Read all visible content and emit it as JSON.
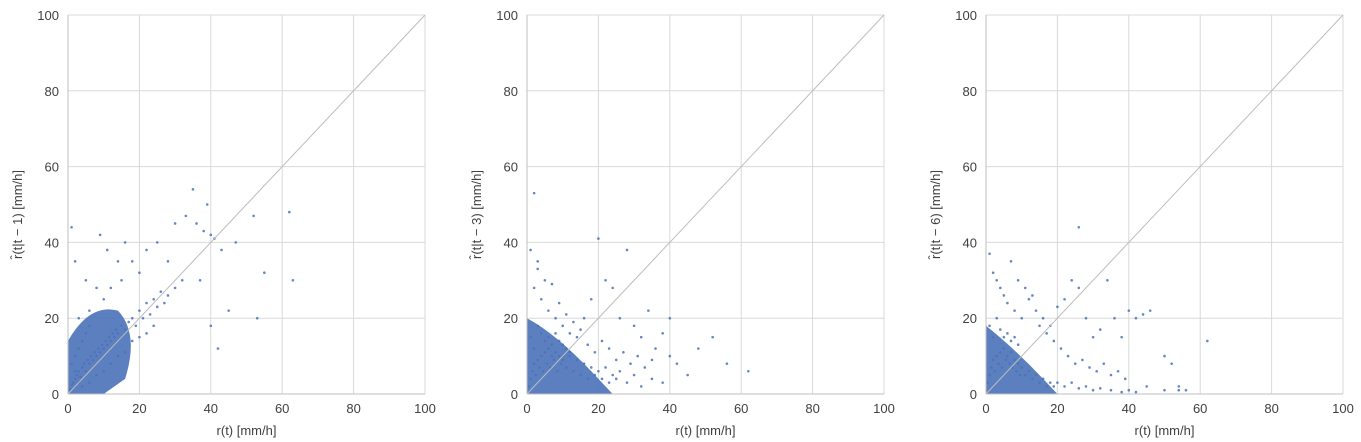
{
  "chart_data": [
    {
      "type": "scatter",
      "xlabel": "r(t) [mm/h]",
      "ylabel": "r̂(t|t − 1) [mm/h]",
      "xlim": [
        0,
        100
      ],
      "ylim": [
        0,
        100
      ],
      "xticks": [
        "0",
        "20",
        "40",
        "60",
        "80",
        "100"
      ],
      "yticks": [
        "0",
        "20",
        "40",
        "60",
        "80",
        "100"
      ],
      "grid": true,
      "reference_line": "y = x",
      "point_color": "#4a72b8",
      "points": [
        [
          0.5,
          1.2
        ],
        [
          1,
          2.5
        ],
        [
          1.5,
          3
        ],
        [
          2,
          4
        ],
        [
          2.5,
          5
        ],
        [
          3,
          6
        ],
        [
          3.5,
          4.5
        ],
        [
          4,
          7
        ],
        [
          4.5,
          8
        ],
        [
          5,
          6
        ],
        [
          5.5,
          9
        ],
        [
          6,
          8
        ],
        [
          6.5,
          10
        ],
        [
          7,
          9
        ],
        [
          7.5,
          11
        ],
        [
          8,
          10
        ],
        [
          8.5,
          12
        ],
        [
          9,
          11
        ],
        [
          9.5,
          13
        ],
        [
          10,
          12
        ],
        [
          10.5,
          14
        ],
        [
          11,
          13
        ],
        [
          11.5,
          15
        ],
        [
          12,
          14
        ],
        [
          12.5,
          16
        ],
        [
          13,
          15
        ],
        [
          13.5,
          17
        ],
        [
          14,
          16
        ],
        [
          15,
          18
        ],
        [
          16,
          17
        ],
        [
          17,
          19
        ],
        [
          18,
          20
        ],
        [
          19,
          18
        ],
        [
          20,
          22
        ],
        [
          21,
          20
        ],
        [
          22,
          24
        ],
        [
          23,
          21
        ],
        [
          24,
          25
        ],
        [
          25,
          23
        ],
        [
          26,
          27
        ],
        [
          27,
          24
        ],
        [
          28,
          26
        ],
        [
          30,
          28
        ],
        [
          32,
          30
        ],
        [
          33,
          47
        ],
        [
          35,
          54
        ],
        [
          36,
          45
        ],
        [
          38,
          43
        ],
        [
          39,
          50
        ],
        [
          40,
          42
        ],
        [
          41,
          41
        ],
        [
          43,
          38
        ],
        [
          47,
          40
        ],
        [
          52,
          47
        ],
        [
          53,
          20
        ],
        [
          55,
          32
        ],
        [
          62,
          48
        ],
        [
          63,
          30
        ],
        [
          1,
          44
        ],
        [
          2,
          35
        ],
        [
          5,
          30
        ],
        [
          8,
          28
        ],
        [
          3,
          20
        ],
        [
          6,
          22
        ],
        [
          10,
          25
        ],
        [
          12,
          28
        ],
        [
          15,
          30
        ],
        [
          18,
          35
        ],
        [
          20,
          32
        ],
        [
          22,
          38
        ],
        [
          25,
          40
        ],
        [
          28,
          35
        ],
        [
          30,
          45
        ],
        [
          37,
          30
        ],
        [
          40,
          18
        ],
        [
          42,
          12
        ],
        [
          45,
          22
        ],
        [
          16,
          40
        ],
        [
          14,
          35
        ],
        [
          9,
          42
        ],
        [
          11,
          38
        ],
        [
          2,
          10
        ],
        [
          3,
          12
        ],
        [
          4,
          14
        ],
        [
          5,
          16
        ],
        [
          6,
          18
        ],
        [
          1,
          8
        ],
        [
          2,
          6
        ],
        [
          3,
          3
        ],
        [
          4,
          2
        ],
        [
          6,
          3
        ],
        [
          8,
          5
        ],
        [
          10,
          6
        ],
        [
          12,
          8
        ],
        [
          14,
          10
        ],
        [
          16,
          11
        ],
        [
          18,
          14
        ],
        [
          20,
          15
        ],
        [
          22,
          16
        ],
        [
          24,
          18
        ]
      ]
    },
    {
      "type": "scatter",
      "xlabel": "r(t) [mm/h]",
      "ylabel": "r̂(t|t − 3) [mm/h]",
      "xlim": [
        0,
        100
      ],
      "ylim": [
        0,
        100
      ],
      "xticks": [
        "0",
        "20",
        "40",
        "60",
        "80",
        "100"
      ],
      "yticks": [
        "0",
        "20",
        "40",
        "60",
        "80",
        "100"
      ],
      "grid": true,
      "reference_line": "y = x",
      "point_color": "#4a72b8",
      "points": [
        [
          0.5,
          2
        ],
        [
          1,
          4
        ],
        [
          1.5,
          6
        ],
        [
          2,
          8
        ],
        [
          2.5,
          5
        ],
        [
          3,
          9
        ],
        [
          3.5,
          7
        ],
        [
          4,
          10
        ],
        [
          4.5,
          6
        ],
        [
          5,
          11
        ],
        [
          5.5,
          8
        ],
        [
          6,
          12
        ],
        [
          6.5,
          7
        ],
        [
          7,
          10
        ],
        [
          7.5,
          9
        ],
        [
          8,
          11
        ],
        [
          8.5,
          6
        ],
        [
          9,
          10
        ],
        [
          9.5,
          8
        ],
        [
          10,
          9
        ],
        [
          11,
          7
        ],
        [
          12,
          10
        ],
        [
          13,
          6
        ],
        [
          14,
          9
        ],
        [
          15,
          5
        ],
        [
          16,
          8
        ],
        [
          17,
          4
        ],
        [
          18,
          7
        ],
        [
          19,
          5
        ],
        [
          20,
          6
        ],
        [
          21,
          4
        ],
        [
          22,
          7
        ],
        [
          23,
          3
        ],
        [
          24,
          5
        ],
        [
          25,
          4
        ],
        [
          26,
          6
        ],
        [
          28,
          3
        ],
        [
          30,
          5
        ],
        [
          32,
          2
        ],
        [
          35,
          4
        ],
        [
          38,
          3
        ],
        [
          40,
          10
        ],
        [
          42,
          8
        ],
        [
          45,
          5
        ],
        [
          48,
          12
        ],
        [
          52,
          15
        ],
        [
          56,
          8
        ],
        [
          62,
          6
        ],
        [
          2,
          53
        ],
        [
          1,
          38
        ],
        [
          3,
          35
        ],
        [
          5,
          30
        ],
        [
          2,
          28
        ],
        [
          4,
          25
        ],
        [
          6,
          22
        ],
        [
          8,
          20
        ],
        [
          10,
          18
        ],
        [
          12,
          16
        ],
        [
          14,
          15
        ],
        [
          16,
          20
        ],
        [
          18,
          25
        ],
        [
          20,
          41
        ],
        [
          22,
          30
        ],
        [
          24,
          28
        ],
        [
          26,
          20
        ],
        [
          28,
          38
        ],
        [
          30,
          18
        ],
        [
          32,
          15
        ],
        [
          34,
          22
        ],
        [
          36,
          12
        ],
        [
          38,
          16
        ],
        [
          40,
          20
        ],
        [
          3,
          33
        ],
        [
          7,
          29
        ],
        [
          9,
          24
        ],
        [
          11,
          21
        ],
        [
          13,
          19
        ],
        [
          15,
          17
        ],
        [
          17,
          13
        ],
        [
          19,
          11
        ],
        [
          21,
          14
        ],
        [
          23,
          12
        ],
        [
          25,
          9
        ],
        [
          27,
          11
        ],
        [
          29,
          8
        ],
        [
          31,
          10
        ],
        [
          33,
          7
        ],
        [
          35,
          9
        ],
        [
          1,
          15
        ],
        [
          2,
          12
        ],
        [
          3,
          18
        ],
        [
          4,
          16
        ],
        [
          5,
          14
        ],
        [
          6,
          15
        ],
        [
          7,
          13
        ],
        [
          8,
          16
        ],
        [
          9,
          14
        ],
        [
          10,
          13
        ],
        [
          11,
          12
        ],
        [
          12,
          11
        ]
      ]
    },
    {
      "type": "scatter",
      "xlabel": "r(t) [mm/h]",
      "ylabel": "r̂(t|t − 6) [mm/h]",
      "xlim": [
        0,
        100
      ],
      "ylim": [
        0,
        100
      ],
      "xticks": [
        "0",
        "20",
        "40",
        "60",
        "80",
        "100"
      ],
      "yticks": [
        "0",
        "20",
        "40",
        "60",
        "80",
        "100"
      ],
      "grid": true,
      "reference_line": "y = x",
      "point_color": "#4a72b8",
      "points": [
        [
          0.5,
          3
        ],
        [
          1,
          5
        ],
        [
          1.5,
          7
        ],
        [
          2,
          9
        ],
        [
          2.5,
          6
        ],
        [
          3,
          10
        ],
        [
          3.5,
          8
        ],
        [
          4,
          11
        ],
        [
          4.5,
          7
        ],
        [
          5,
          12
        ],
        [
          5.5,
          9
        ],
        [
          6,
          10
        ],
        [
          6.5,
          8
        ],
        [
          7,
          11
        ],
        [
          7.5,
          7
        ],
        [
          8,
          9
        ],
        [
          8.5,
          6
        ],
        [
          9,
          8
        ],
        [
          9.5,
          5
        ],
        [
          10,
          7
        ],
        [
          11,
          5
        ],
        [
          12,
          6
        ],
        [
          13,
          4
        ],
        [
          14,
          5
        ],
        [
          15,
          3
        ],
        [
          16,
          4
        ],
        [
          17,
          2
        ],
        [
          18,
          3
        ],
        [
          19,
          2
        ],
        [
          20,
          3
        ],
        [
          22,
          2
        ],
        [
          24,
          3
        ],
        [
          26,
          1.5
        ],
        [
          28,
          2
        ],
        [
          30,
          1
        ],
        [
          32,
          1.5
        ],
        [
          35,
          1
        ],
        [
          38,
          0.5
        ],
        [
          40,
          1
        ],
        [
          42,
          0.5
        ],
        [
          45,
          2
        ],
        [
          50,
          1
        ],
        [
          54,
          1
        ],
        [
          56,
          1
        ],
        [
          62,
          14
        ],
        [
          26,
          44
        ],
        [
          1,
          37
        ],
        [
          2,
          32
        ],
        [
          3,
          30
        ],
        [
          4,
          28
        ],
        [
          5,
          26
        ],
        [
          6,
          24
        ],
        [
          8,
          22
        ],
        [
          10,
          20
        ],
        [
          12,
          25
        ],
        [
          14,
          22
        ],
        [
          16,
          20
        ],
        [
          18,
          18
        ],
        [
          20,
          23
        ],
        [
          22,
          25
        ],
        [
          24,
          30
        ],
        [
          26,
          28
        ],
        [
          28,
          20
        ],
        [
          30,
          15
        ],
        [
          32,
          17
        ],
        [
          34,
          30
        ],
        [
          36,
          20
        ],
        [
          38,
          15
        ],
        [
          40,
          22
        ],
        [
          42,
          20
        ],
        [
          44,
          21
        ],
        [
          46,
          22
        ],
        [
          50,
          10
        ],
        [
          52,
          8
        ],
        [
          54,
          2
        ],
        [
          7,
          35
        ],
        [
          9,
          30
        ],
        [
          11,
          28
        ],
        [
          13,
          26
        ],
        [
          15,
          18
        ],
        [
          17,
          16
        ],
        [
          19,
          14
        ],
        [
          21,
          12
        ],
        [
          23,
          10
        ],
        [
          25,
          8
        ],
        [
          27,
          9
        ],
        [
          29,
          7
        ],
        [
          31,
          6
        ],
        [
          33,
          8
        ],
        [
          35,
          5
        ],
        [
          37,
          6
        ],
        [
          39,
          4
        ],
        [
          1,
          18
        ],
        [
          2,
          15
        ],
        [
          3,
          20
        ],
        [
          4,
          17
        ],
        [
          5,
          15
        ],
        [
          6,
          16
        ],
        [
          7,
          14
        ],
        [
          8,
          15
        ],
        [
          9,
          13
        ]
      ]
    }
  ]
}
